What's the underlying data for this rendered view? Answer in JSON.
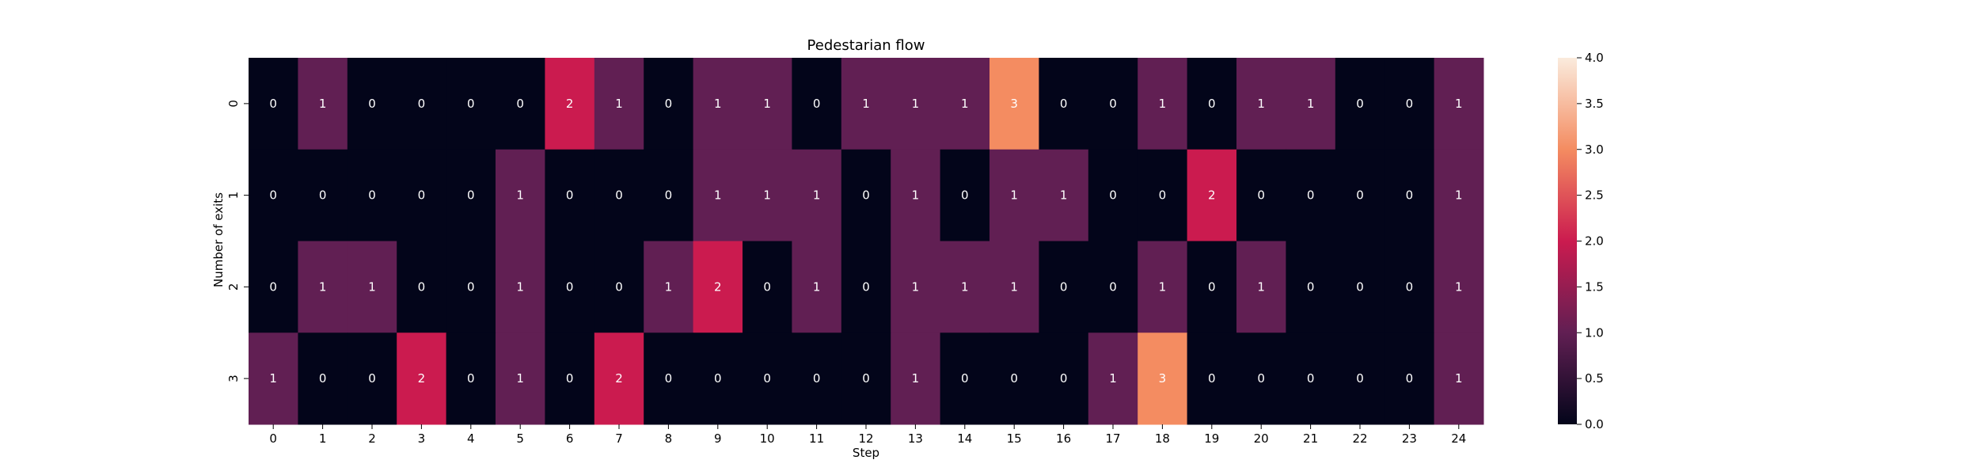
{
  "chart_data": {
    "type": "heatmap",
    "title": "Pedestarian flow",
    "xlabel": "Step",
    "ylabel": "Number of exits",
    "x_categories": [
      "0",
      "1",
      "2",
      "3",
      "4",
      "5",
      "6",
      "7",
      "8",
      "9",
      "10",
      "11",
      "12",
      "13",
      "14",
      "15",
      "16",
      "17",
      "18",
      "19",
      "20",
      "21",
      "22",
      "23",
      "24"
    ],
    "y_categories": [
      "0",
      "1",
      "2",
      "3"
    ],
    "values": [
      [
        0,
        1,
        0,
        0,
        0,
        0,
        2,
        1,
        0,
        1,
        1,
        0,
        1,
        1,
        1,
        3,
        0,
        0,
        1,
        0,
        1,
        1,
        0,
        0,
        1
      ],
      [
        0,
        0,
        0,
        0,
        0,
        1,
        0,
        0,
        0,
        1,
        1,
        1,
        0,
        1,
        0,
        1,
        1,
        0,
        0,
        2,
        0,
        0,
        0,
        0,
        1
      ],
      [
        0,
        1,
        1,
        0,
        0,
        1,
        0,
        0,
        1,
        2,
        0,
        1,
        0,
        1,
        1,
        1,
        0,
        0,
        1,
        0,
        1,
        0,
        0,
        0,
        1
      ],
      [
        1,
        0,
        0,
        2,
        0,
        1,
        0,
        2,
        0,
        0,
        0,
        0,
        0,
        1,
        0,
        0,
        0,
        1,
        3,
        0,
        0,
        0,
        0,
        0,
        1
      ]
    ],
    "annotate": true,
    "colormap": "rocket",
    "vmin": 0,
    "vmax": 4,
    "colorbar": {
      "ticks": [
        0.0,
        0.5,
        1.0,
        1.5,
        2.0,
        2.5,
        3.0,
        3.5,
        4.0
      ],
      "tick_labels": [
        "0.0",
        "0.5",
        "1.0",
        "1.5",
        "2.0",
        "2.5",
        "3.0",
        "3.5",
        "4.0"
      ]
    },
    "colors": {
      "0": "#03051a",
      "1": "#611f53",
      "2": "#cb1b4f",
      "3": "#f48c61",
      "4": "#faebdd"
    },
    "grid": false
  }
}
